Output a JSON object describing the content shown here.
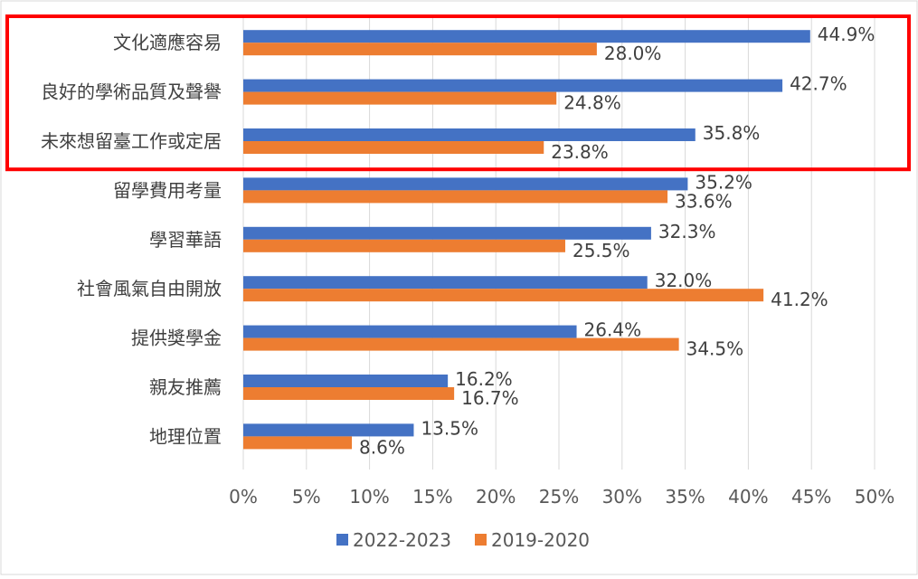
{
  "chart_data": {
    "type": "bar",
    "orientation": "horizontal",
    "categories": [
      "文化適應容易",
      "良好的學術品質及聲譽",
      "未來想留臺工作或定居",
      "留學費用考量",
      "學習華語",
      "社會風氣自由開放",
      "提供獎學金",
      "親友推薦",
      "地理位置"
    ],
    "series": [
      {
        "name": "2022-2023",
        "color": "#4472C4",
        "values": [
          44.9,
          42.7,
          35.8,
          35.2,
          32.3,
          32.0,
          26.4,
          16.2,
          13.5
        ],
        "labels": [
          "44.9%",
          "42.7%",
          "35.8%",
          "35.2%",
          "32.3%",
          "32.0%",
          "26.4%",
          "16.2%",
          "13.5%"
        ]
      },
      {
        "name": "2019-2020",
        "color": "#ED7D31",
        "values": [
          28.0,
          24.8,
          23.8,
          33.6,
          25.5,
          41.2,
          34.5,
          16.7,
          8.6
        ],
        "labels": [
          "28.0%",
          "24.8%",
          "23.8%",
          "33.6%",
          "25.5%",
          "41.2%",
          "34.5%",
          "16.7%",
          "8.6%"
        ]
      }
    ],
    "xlim": [
      0,
      50
    ],
    "x_ticks": [
      0,
      5,
      10,
      15,
      20,
      25,
      30,
      35,
      40,
      45,
      50
    ],
    "x_tick_labels": [
      "0%",
      "5%",
      "10%",
      "15%",
      "20%",
      "25%",
      "30%",
      "35%",
      "40%",
      "45%",
      "50%"
    ],
    "grid": true,
    "legend": "bottom",
    "highlight": {
      "categories": [
        0,
        1,
        2
      ],
      "color": "#FF0000"
    },
    "title": "",
    "xlabel": "",
    "ylabel": ""
  }
}
